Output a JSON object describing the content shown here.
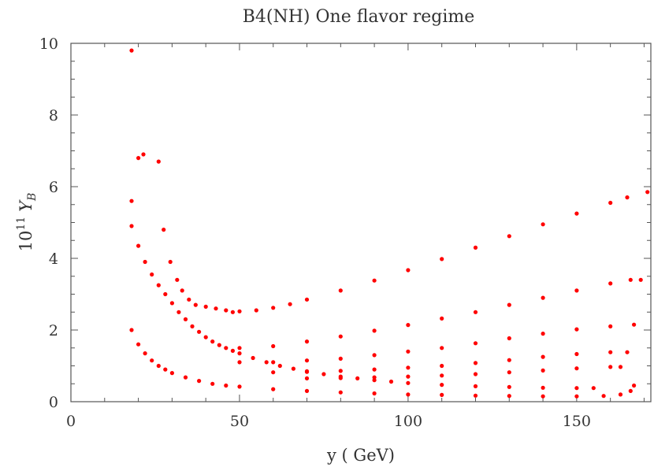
{
  "chart_data": {
    "type": "scatter",
    "title": "B4(NH) One flavor regime",
    "xlabel": "y ( GeV)",
    "ylabel": {
      "prefix": "10",
      "superscript": "11",
      "symbol": "Y",
      "subscript": "B"
    },
    "xlim": [
      0,
      172
    ],
    "ylim": [
      0,
      10
    ],
    "xticks": [
      0,
      50,
      100,
      150
    ],
    "yticks": [
      0,
      2,
      4,
      6,
      8,
      10
    ],
    "grid": false,
    "marker_color": "#ff0000",
    "series": [
      {
        "values": [
          [
            18,
            9.8
          ],
          [
            18,
            5.6
          ],
          [
            20,
            6.8
          ],
          [
            21.5,
            6.9
          ],
          [
            26,
            6.7
          ],
          [
            27.5,
            4.8
          ],
          [
            29.5,
            3.9
          ],
          [
            31.5,
            3.4
          ],
          [
            33,
            3.1
          ],
          [
            35,
            2.85
          ],
          [
            37,
            2.7
          ],
          [
            40,
            2.65
          ],
          [
            43,
            2.6
          ],
          [
            46,
            2.55
          ],
          [
            48,
            2.5
          ],
          [
            50,
            2.52
          ],
          [
            55,
            2.55
          ],
          [
            60,
            2.62
          ],
          [
            65,
            2.72
          ],
          [
            70,
            2.85
          ],
          [
            80,
            3.1
          ],
          [
            90,
            3.38
          ],
          [
            100,
            3.67
          ],
          [
            110,
            3.98
          ],
          [
            120,
            4.3
          ],
          [
            130,
            4.62
          ],
          [
            140,
            4.95
          ],
          [
            150,
            5.25
          ],
          [
            160,
            5.55
          ],
          [
            165,
            5.7
          ],
          [
            171,
            5.85
          ],
          [
            50,
            1.5
          ],
          [
            60,
            1.55
          ],
          [
            70,
            1.68
          ],
          [
            80,
            1.82
          ],
          [
            90,
            1.98
          ],
          [
            100,
            2.14
          ],
          [
            110,
            2.32
          ],
          [
            120,
            2.5
          ],
          [
            130,
            2.7
          ],
          [
            140,
            2.9
          ],
          [
            150,
            3.1
          ],
          [
            160,
            3.3
          ],
          [
            166,
            3.4
          ],
          [
            169,
            3.4
          ],
          [
            50,
            1.1
          ],
          [
            60,
            1.1
          ],
          [
            70,
            1.15
          ],
          [
            80,
            1.2
          ],
          [
            90,
            1.3
          ],
          [
            100,
            1.4
          ],
          [
            110,
            1.5
          ],
          [
            120,
            1.63
          ],
          [
            130,
            1.77
          ],
          [
            140,
            1.9
          ],
          [
            150,
            2.02
          ],
          [
            160,
            2.1
          ],
          [
            167,
            2.15
          ],
          [
            60,
            0.82
          ],
          [
            70,
            0.83
          ],
          [
            80,
            0.86
          ],
          [
            90,
            0.9
          ],
          [
            100,
            0.95
          ],
          [
            110,
            1.0
          ],
          [
            120,
            1.08
          ],
          [
            130,
            1.16
          ],
          [
            140,
            1.25
          ],
          [
            150,
            1.33
          ],
          [
            160,
            1.38
          ],
          [
            165,
            1.38
          ],
          [
            70,
            0.65
          ],
          [
            80,
            0.66
          ],
          [
            90,
            0.68
          ],
          [
            100,
            0.7
          ],
          [
            110,
            0.73
          ],
          [
            120,
            0.77
          ],
          [
            130,
            0.82
          ],
          [
            140,
            0.87
          ],
          [
            150,
            0.93
          ],
          [
            160,
            0.97
          ],
          [
            163,
            0.97
          ],
          [
            18,
            4.9
          ],
          [
            20,
            4.35
          ],
          [
            22,
            3.9
          ],
          [
            24,
            3.55
          ],
          [
            26,
            3.25
          ],
          [
            28,
            3.0
          ],
          [
            30,
            2.75
          ],
          [
            32,
            2.5
          ],
          [
            34,
            2.3
          ],
          [
            36,
            2.1
          ],
          [
            38,
            1.95
          ],
          [
            40,
            1.8
          ],
          [
            42,
            1.68
          ],
          [
            44,
            1.58
          ],
          [
            46,
            1.5
          ],
          [
            48,
            1.42
          ],
          [
            50,
            1.35
          ],
          [
            54,
            1.22
          ],
          [
            58,
            1.1
          ],
          [
            62,
            1.0
          ],
          [
            66,
            0.92
          ],
          [
            70,
            0.85
          ],
          [
            75,
            0.77
          ],
          [
            80,
            0.7
          ],
          [
            85,
            0.65
          ],
          [
            90,
            0.6
          ],
          [
            95,
            0.56
          ],
          [
            100,
            0.52
          ],
          [
            110,
            0.47
          ],
          [
            120,
            0.43
          ],
          [
            130,
            0.41
          ],
          [
            140,
            0.39
          ],
          [
            150,
            0.38
          ],
          [
            155,
            0.38
          ],
          [
            18,
            2.0
          ],
          [
            20,
            1.6
          ],
          [
            22,
            1.35
          ],
          [
            24,
            1.15
          ],
          [
            26,
            1.0
          ],
          [
            28,
            0.9
          ],
          [
            30,
            0.8
          ],
          [
            34,
            0.68
          ],
          [
            38,
            0.58
          ],
          [
            42,
            0.5
          ],
          [
            46,
            0.45
          ],
          [
            50,
            0.42
          ],
          [
            60,
            0.35
          ],
          [
            70,
            0.3
          ],
          [
            80,
            0.26
          ],
          [
            90,
            0.23
          ],
          [
            100,
            0.2
          ],
          [
            110,
            0.19
          ],
          [
            120,
            0.17
          ],
          [
            130,
            0.16
          ],
          [
            140,
            0.15
          ],
          [
            150,
            0.15
          ],
          [
            158,
            0.16
          ],
          [
            163,
            0.2
          ],
          [
            166,
            0.3
          ],
          [
            167,
            0.45
          ]
        ]
      }
    ]
  }
}
